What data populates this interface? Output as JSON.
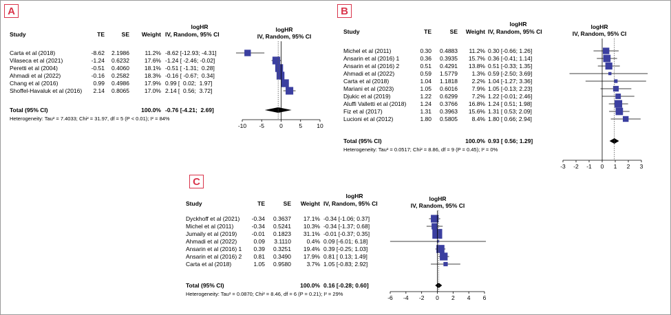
{
  "panels": [
    {
      "label": "A",
      "header": {
        "title": "logHR",
        "study": "Study",
        "te": "TE",
        "se": "SE",
        "weight": "Weight",
        "ci": "IV, Random, 95% CI",
        "plot_title": "logHR",
        "plot_sub": "IV, Random, 95% CI"
      },
      "studies": [
        {
          "name": "Carta et al (2018)",
          "te": "-8.62",
          "se": "2.1986",
          "weight": "11.2%",
          "ci": "-8.62 [-12.93; -4.31]"
        },
        {
          "name": "Vilaseca et al (2021)",
          "te": "-1.24",
          "se": "0.6232",
          "weight": "17.6%",
          "ci": "-1.24 [ -2.46; -0.02]"
        },
        {
          "name": "Peretti et al (2004)",
          "te": "-0.51",
          "se": "0.4060",
          "weight": "18.1%",
          "ci": "-0.51 [ -1.31;  0.28]"
        },
        {
          "name": "Ahmadi et al (2022)",
          "te": "-0.16",
          "se": "0.2582",
          "weight": "18.3%",
          "ci": "-0.16 [ -0.67;  0.34]"
        },
        {
          "name": "Chang et al (2016)",
          "te": "0.99",
          "se": "0.4986",
          "weight": "17.9%",
          "ci": "0.99 [  0.02;  1.97]"
        },
        {
          "name": "Shoffel-Havaluk et al (2016)",
          "te": "2.14",
          "se": "0.8065",
          "weight": "17.0%",
          "ci": "2.14 [  0.56;  3.72]"
        }
      ],
      "total": {
        "name": "Total (95% CI)",
        "weight": "100.0%",
        "ci": "-0.76 [-4.21;  2.69]"
      },
      "heterogeneity": "Heterogeneity: Tau² = 7.4033; Chi² = 31.97, df = 5 (P < 0.01); I² = 84%"
    },
    {
      "label": "B",
      "header": {
        "title": "logHR",
        "study": "Study",
        "te": "TE",
        "se": "SE",
        "weight": "Weight",
        "ci": "IV, Random, 95% CI",
        "plot_title": "logHR",
        "plot_sub": "IV, Random, 95% CI"
      },
      "studies": [
        {
          "name": "Michel et al (2011)",
          "te": "0.30",
          "se": "0.4883",
          "weight": "11.2%",
          "ci": "0.30 [-0.66; 1.26]"
        },
        {
          "name": "Ansarin et al (2016) 1",
          "te": "0.36",
          "se": "0.3935",
          "weight": "15.7%",
          "ci": "0.36 [-0.41; 1.14]"
        },
        {
          "name": "Ansarin et al (2016) 2",
          "te": "0.51",
          "se": "0.4291",
          "weight": "13.8%",
          "ci": "0.51 [-0.33; 1.35]"
        },
        {
          "name": "Ahmadi et al (2022)",
          "te": "0.59",
          "se": "1.5779",
          "weight": "1.3%",
          "ci": "0.59 [-2.50; 3.69]"
        },
        {
          "name": "Carta et al (2018)",
          "te": "1.04",
          "se": "1.1818",
          "weight": "2.2%",
          "ci": "1.04 [-1.27; 3.36]"
        },
        {
          "name": "Mariani et al (2023)",
          "te": "1.05",
          "se": "0.6016",
          "weight": "7.9%",
          "ci": "1.05 [-0.13; 2.23]"
        },
        {
          "name": "Djukic et al (2019)",
          "te": "1.22",
          "se": "0.6299",
          "weight": "7.2%",
          "ci": "1.22 [-0.01; 2.46]"
        },
        {
          "name": "Aluffi Valletti et al (2018)",
          "te": "1.24",
          "se": "0.3766",
          "weight": "16.8%",
          "ci": "1.24 [ 0.51; 1.98]"
        },
        {
          "name": "Fiz et al (2017)",
          "te": "1.31",
          "se": "0.3963",
          "weight": "15.6%",
          "ci": "1.31 [ 0.53; 2.09]"
        },
        {
          "name": "Lucioni et al (2012)",
          "te": "1.80",
          "se": "0.5805",
          "weight": "8.4%",
          "ci": "1.80 [ 0.66; 2.94]"
        }
      ],
      "total": {
        "name": "Total (95% CI)",
        "weight": "100.0%",
        "ci": "0.93 [ 0.56; 1.29]"
      },
      "heterogeneity": "Heterogeneity: Tau² = 0.0517; Chi² = 8.86, df = 9 (P = 0.45); I² = 0%"
    },
    {
      "label": "C",
      "header": {
        "title": "logHR",
        "study": "Study",
        "te": "TE",
        "se": "SE",
        "weight": "Weight",
        "ci": "IV, Random, 95% CI",
        "plot_title": "logHR",
        "plot_sub": "IV, Random, 95% CI"
      },
      "studies": [
        {
          "name": "Dyckhoff et al (2021)",
          "te": "-0.34",
          "se": "0.3637",
          "weight": "17.1%",
          "ci": "-0.34 [-1.06; 0.37]"
        },
        {
          "name": "Michel et al (2011)",
          "te": "-0.34",
          "se": "0.5241",
          "weight": "10.3%",
          "ci": "-0.34 [-1.37; 0.68]"
        },
        {
          "name": "Jumaily et al (2019)",
          "te": "-0.01",
          "se": "0.1823",
          "weight": "31.1%",
          "ci": "-0.01 [-0.37; 0.35]"
        },
        {
          "name": "Ahmadi et al (2022)",
          "te": "0.09",
          "se": "3.1110",
          "weight": "0.4%",
          "ci": "0.09 [-6.01; 6.18]"
        },
        {
          "name": "Ansarin et al (2016) 1",
          "te": "0.39",
          "se": "0.3251",
          "weight": "19.4%",
          "ci": "0.39 [-0.25; 1.03]"
        },
        {
          "name": "Ansarin et al (2016) 2",
          "te": "0.81",
          "se": "0.3490",
          "weight": "17.9%",
          "ci": "0.81 [ 0.13; 1.49]"
        },
        {
          "name": "Carta et al (2018)",
          "te": "1.05",
          "se": "0.9580",
          "weight": "3.7%",
          "ci": "1.05 [-0.83; 2.92]"
        }
      ],
      "total": {
        "name": "Total (95% CI)",
        "weight": "100.0%",
        "ci": "0.16 [-0.28; 0.60]"
      },
      "heterogeneity": "Heterogeneity: Tau² = 0.0870; Chi² = 8.46, df = 6 (P = 0.21); I² = 29%"
    }
  ],
  "chart_data": [
    {
      "type": "forest",
      "title": "logHR",
      "xlim": [
        -10,
        10
      ],
      "ticks": [
        -10,
        -5,
        0,
        5,
        10
      ],
      "reference_line": 0,
      "pooled_estimate": -0.76,
      "pooled_ci": [
        -4.21,
        2.69
      ],
      "studies": [
        {
          "name": "Carta et al (2018)",
          "estimate": -8.62,
          "ci": [
            -12.93,
            -4.31
          ],
          "weight": 11.2
        },
        {
          "name": "Vilaseca et al (2021)",
          "estimate": -1.24,
          "ci": [
            -2.46,
            -0.02
          ],
          "weight": 17.6
        },
        {
          "name": "Peretti et al (2004)",
          "estimate": -0.51,
          "ci": [
            -1.31,
            0.28
          ],
          "weight": 18.1
        },
        {
          "name": "Ahmadi et al (2022)",
          "estimate": -0.16,
          "ci": [
            -0.67,
            0.34
          ],
          "weight": 18.3
        },
        {
          "name": "Chang et al (2016)",
          "estimate": 0.99,
          "ci": [
            0.02,
            1.97
          ],
          "weight": 17.9
        },
        {
          "name": "Shoffel-Havaluk et al (2016)",
          "estimate": 2.14,
          "ci": [
            0.56,
            3.72
          ],
          "weight": 17.0
        }
      ]
    },
    {
      "type": "forest",
      "title": "logHR",
      "xlim": [
        -3,
        3
      ],
      "ticks": [
        -3,
        -2,
        -1,
        0,
        1,
        2,
        3
      ],
      "reference_line": 0,
      "pooled_estimate": 0.93,
      "pooled_ci": [
        0.56,
        1.29
      ],
      "studies": [
        {
          "name": "Michel et al (2011)",
          "estimate": 0.3,
          "ci": [
            -0.66,
            1.26
          ],
          "weight": 11.2
        },
        {
          "name": "Ansarin et al (2016) 1",
          "estimate": 0.36,
          "ci": [
            -0.41,
            1.14
          ],
          "weight": 15.7
        },
        {
          "name": "Ansarin et al (2016) 2",
          "estimate": 0.51,
          "ci": [
            -0.33,
            1.35
          ],
          "weight": 13.8
        },
        {
          "name": "Ahmadi et al (2022)",
          "estimate": 0.59,
          "ci": [
            -2.5,
            3.69
          ],
          "weight": 1.3
        },
        {
          "name": "Carta et al (2018)",
          "estimate": 1.04,
          "ci": [
            -1.27,
            3.36
          ],
          "weight": 2.2
        },
        {
          "name": "Mariani et al (2023)",
          "estimate": 1.05,
          "ci": [
            -0.13,
            2.23
          ],
          "weight": 7.9
        },
        {
          "name": "Djukic et al (2019)",
          "estimate": 1.22,
          "ci": [
            -0.01,
            2.46
          ],
          "weight": 7.2
        },
        {
          "name": "Aluffi Valletti et al (2018)",
          "estimate": 1.24,
          "ci": [
            0.51,
            1.98
          ],
          "weight": 16.8
        },
        {
          "name": "Fiz et al (2017)",
          "estimate": 1.31,
          "ci": [
            0.53,
            2.09
          ],
          "weight": 15.6
        },
        {
          "name": "Lucioni et al (2012)",
          "estimate": 1.8,
          "ci": [
            0.66,
            2.94
          ],
          "weight": 8.4
        }
      ]
    },
    {
      "type": "forest",
      "title": "logHR",
      "xlim": [
        -6,
        6
      ],
      "ticks": [
        -6,
        -4,
        -2,
        0,
        2,
        4,
        6
      ],
      "reference_line": 0,
      "pooled_estimate": 0.16,
      "pooled_ci": [
        -0.28,
        0.6
      ],
      "studies": [
        {
          "name": "Dyckhoff et al (2021)",
          "estimate": -0.34,
          "ci": [
            -1.06,
            0.37
          ],
          "weight": 17.1
        },
        {
          "name": "Michel et al (2011)",
          "estimate": -0.34,
          "ci": [
            -1.37,
            0.68
          ],
          "weight": 10.3
        },
        {
          "name": "Jumaily et al (2019)",
          "estimate": -0.01,
          "ci": [
            -0.37,
            0.35
          ],
          "weight": 31.1
        },
        {
          "name": "Ahmadi et al (2022)",
          "estimate": 0.09,
          "ci": [
            -6.01,
            6.18
          ],
          "weight": 0.4
        },
        {
          "name": "Ansarin et al (2016) 1",
          "estimate": 0.39,
          "ci": [
            -0.25,
            1.03
          ],
          "weight": 19.4
        },
        {
          "name": "Ansarin et al (2016) 2",
          "estimate": 0.81,
          "ci": [
            0.13,
            1.49
          ],
          "weight": 17.9
        },
        {
          "name": "Carta et al (2018)",
          "estimate": 1.05,
          "ci": [
            -0.83,
            2.92
          ],
          "weight": 3.7
        }
      ]
    }
  ],
  "colors": {
    "square": "#3b3fa0",
    "badge": "#d9334a"
  }
}
